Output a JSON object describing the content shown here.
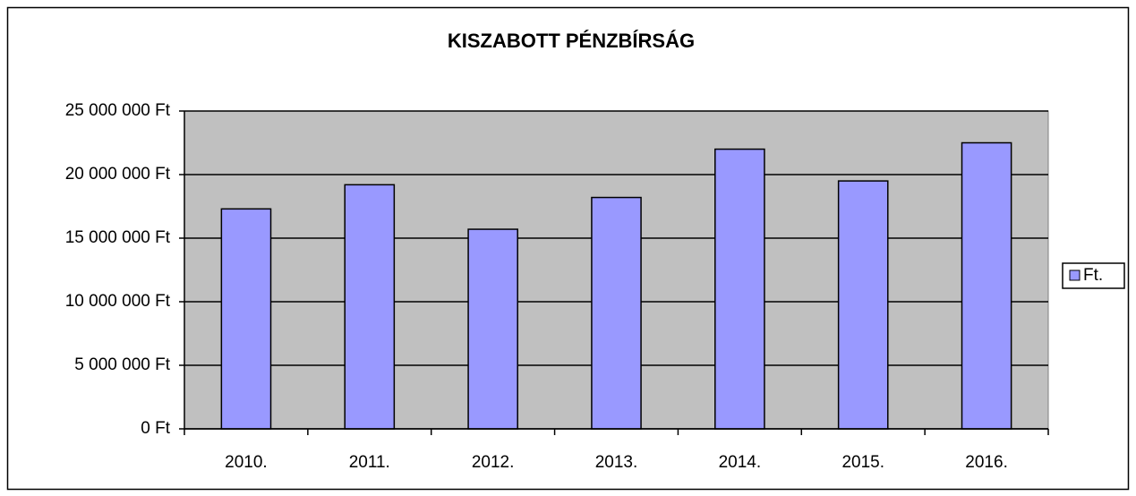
{
  "chart_data": {
    "type": "bar",
    "title": "KISZABOTT PÉNZBÍRSÁG",
    "categories": [
      "2010.",
      "2011.",
      "2012.",
      "2013.",
      "2014.",
      "2015.",
      "2016."
    ],
    "series": [
      {
        "name": "Ft.",
        "color": "#9999ff",
        "values": [
          17300000,
          19200000,
          15700000,
          18200000,
          22000000,
          19500000,
          22500000
        ]
      }
    ],
    "ylim": [
      0,
      25000000
    ],
    "yticks": [
      {
        "value": 0,
        "label": "0 Ft"
      },
      {
        "value": 5000000,
        "label": "5 000 000 Ft"
      },
      {
        "value": 10000000,
        "label": "10 000 000 Ft"
      },
      {
        "value": 15000000,
        "label": "15 000 000 Ft"
      },
      {
        "value": 20000000,
        "label": "20 000 000 Ft"
      },
      {
        "value": 25000000,
        "label": "25 000 000 Ft"
      }
    ],
    "grid": true,
    "legend": "right",
    "plot_background": "#c0c0c0"
  }
}
